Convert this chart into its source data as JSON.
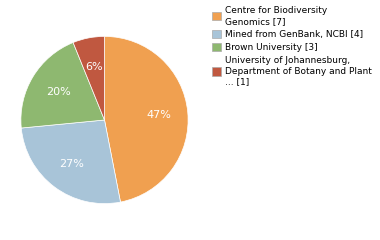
{
  "labels": [
    "Centre for Biodiversity\nGenomics [7]",
    "Mined from GenBank, NCBI [4]",
    "Brown University [3]",
    "University of Johannesburg,\nDepartment of Botany and Plant\n... [1]"
  ],
  "values": [
    46,
    26,
    20,
    6
  ],
  "colors": [
    "#f0a050",
    "#a8c4d8",
    "#8eb870",
    "#c05840"
  ],
  "background_color": "#ffffff",
  "text_color": "#ffffff",
  "startangle": 90,
  "figsize": [
    3.8,
    2.4
  ],
  "dpi": 100
}
